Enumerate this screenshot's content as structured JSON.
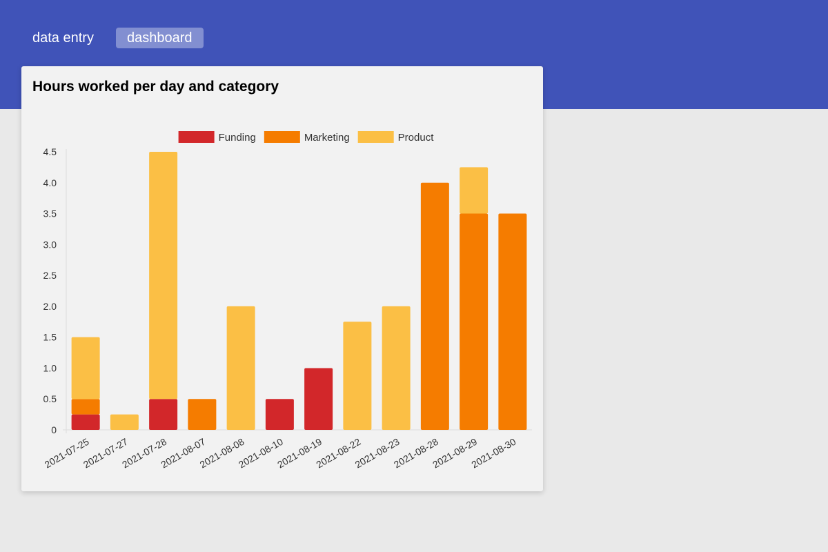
{
  "nav": {
    "data_entry": "data entry",
    "dashboard": "dashboard"
  },
  "card": {
    "title": "Hours worked per day and category"
  },
  "colors": {
    "header": "#4053b8",
    "funding": "#d2272a",
    "marketing": "#f57c00",
    "product": "#fbbf45"
  },
  "chart_data": {
    "type": "bar",
    "stacked": true,
    "categories": [
      "2021-07-25",
      "2021-07-27",
      "2021-07-28",
      "2021-08-07",
      "2021-08-08",
      "2021-08-10",
      "2021-08-19",
      "2021-08-22",
      "2021-08-23",
      "2021-08-28",
      "2021-08-29",
      "2021-08-30"
    ],
    "series": [
      {
        "name": "Funding",
        "color": "#d2272a",
        "values": [
          0.25,
          0,
          0.5,
          0,
          0,
          0.5,
          1.0,
          0,
          0,
          0,
          0,
          0
        ]
      },
      {
        "name": "Marketing",
        "color": "#f57c00",
        "values": [
          0.25,
          0,
          0,
          0.5,
          0,
          0,
          0,
          0,
          0,
          4.0,
          3.5,
          3.5
        ]
      },
      {
        "name": "Product",
        "color": "#fbbf45",
        "values": [
          1.0,
          0.25,
          4.0,
          0,
          2.0,
          0,
          0,
          1.75,
          2.0,
          0,
          0.75,
          0
        ]
      }
    ],
    "ylim": [
      0,
      4.5
    ],
    "yticks": [
      "0",
      "0.5",
      "1.0",
      "1.5",
      "2.0",
      "2.5",
      "3.0",
      "3.5",
      "4.0",
      "4.5"
    ],
    "legend_position": "top",
    "grid": false
  }
}
